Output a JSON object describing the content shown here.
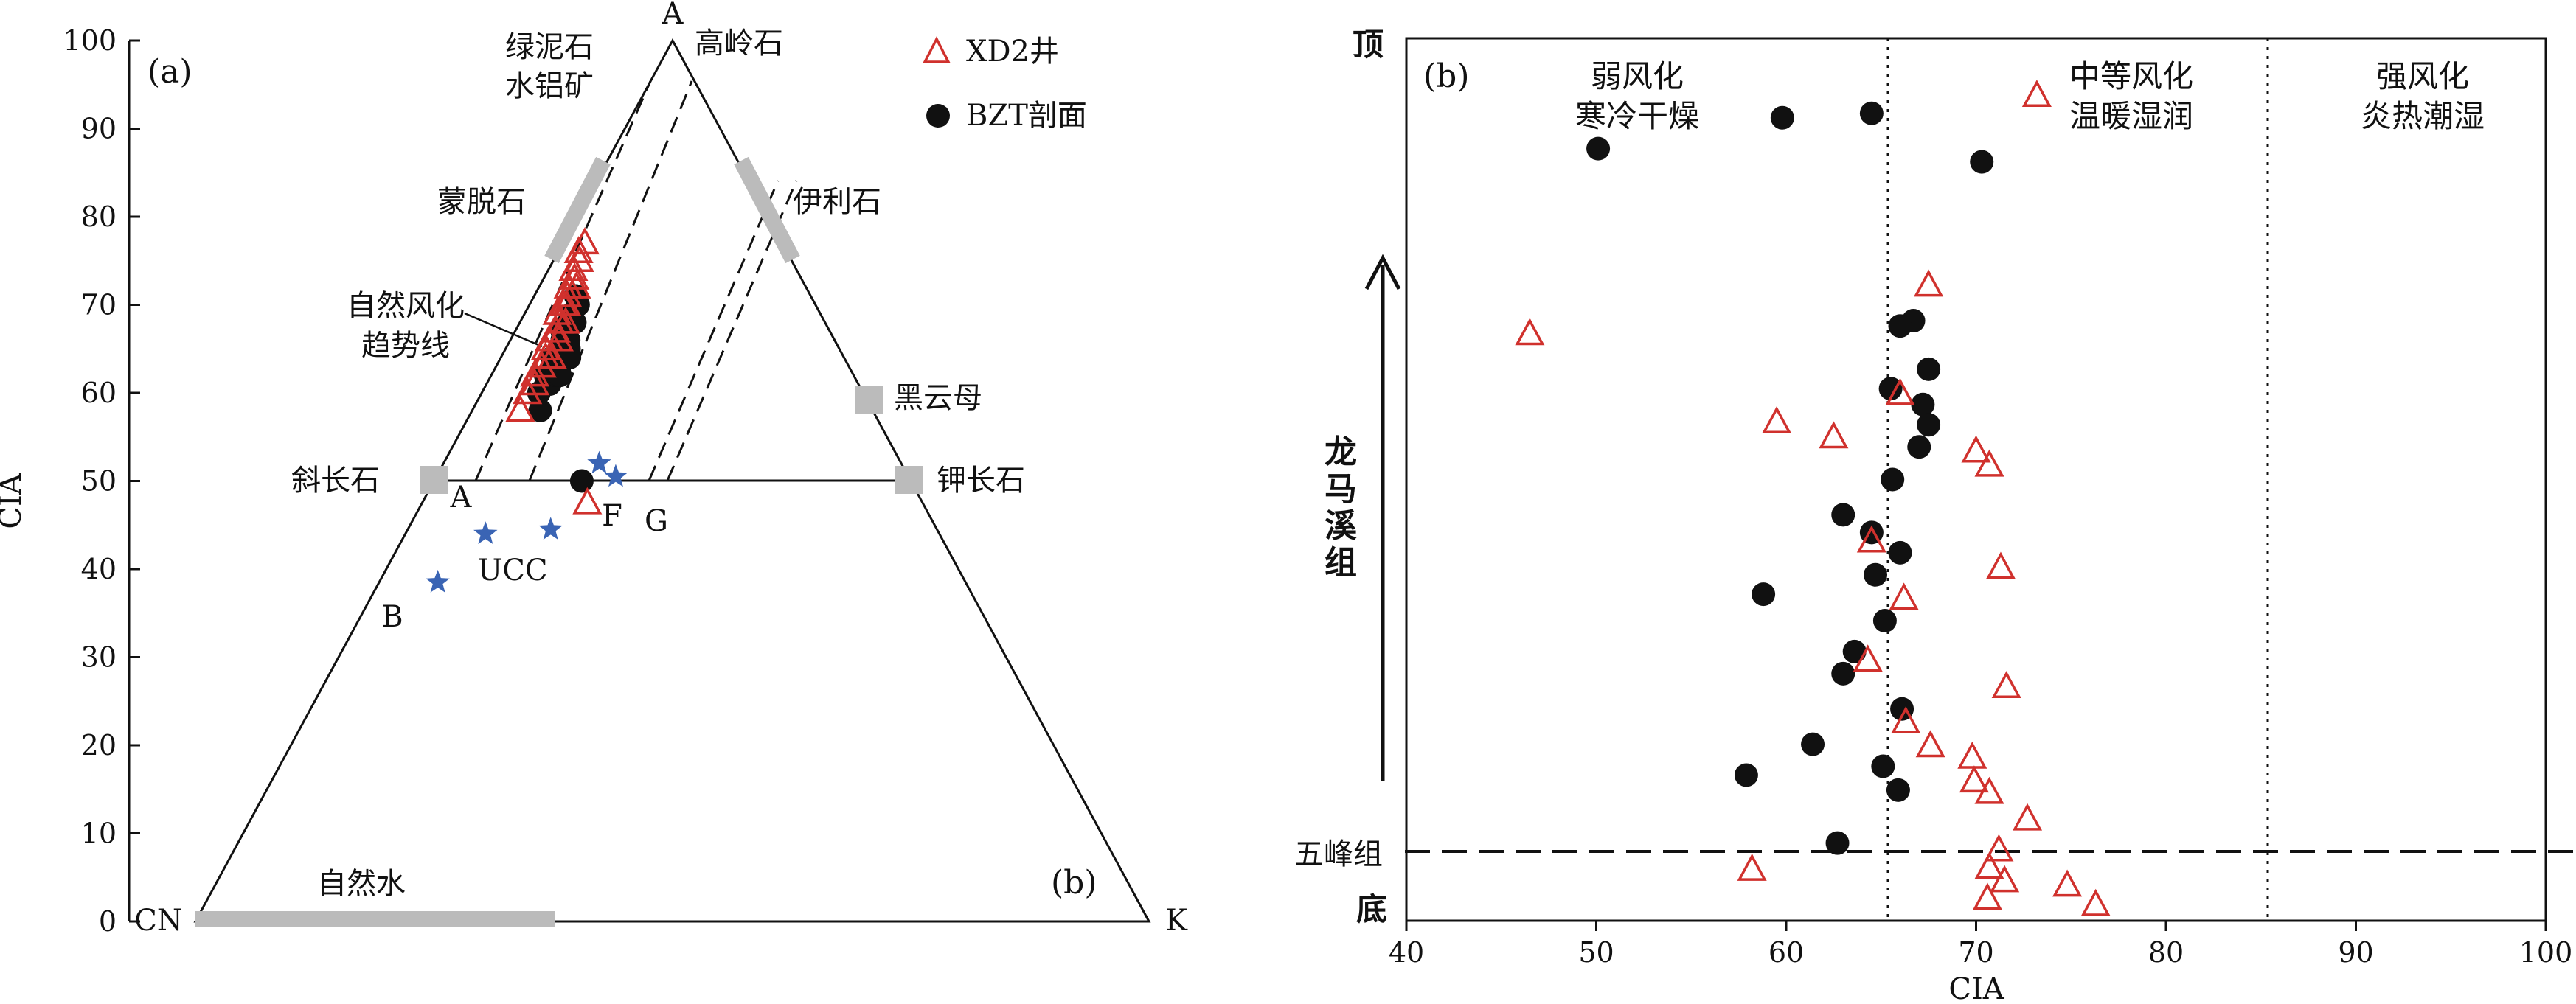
{
  "colors": {
    "xd2": "#d0312d",
    "bzt": "#111111",
    "ucc": "#3a64b4",
    "mineral": "#b9b9b9",
    "axis": "#111111"
  },
  "chart_data": [
    {
      "type": "scatter",
      "subtype": "ternary",
      "panel_label": "(a)",
      "ylabel": "CIA",
      "ylim": [
        0,
        100
      ],
      "yticks": [
        "0",
        "10",
        "20",
        "30",
        "40",
        "50",
        "60",
        "70",
        "80",
        "90",
        "100"
      ],
      "corners": {
        "top": "A",
        "left": "CN",
        "right": "K"
      },
      "corner_label_b": "(b)",
      "legend": [
        {
          "name": "XD2井",
          "marker": "triangle"
        },
        {
          "name": "BZT剖面",
          "marker": "circle"
        }
      ],
      "minerals": {
        "chlorite_gibbsite": [
          "绿泥石",
          "水铝矿"
        ],
        "kaolinite": "高岭石",
        "montmorillonite": "蒙脱石",
        "illite": "伊利石",
        "biotite": "黑云母",
        "plagioclase": "斜长石",
        "kfeldspar": "钾长石",
        "natural_water": "自然水"
      },
      "trend_label": [
        "自然风化",
        "趋势线"
      ],
      "ucc_label": "UCC",
      "point_labels": {
        "a": "A",
        "b": "B",
        "f": "F",
        "g": "G"
      },
      "ucc_points": [
        {
          "cia": 38.5,
          "k": 10
        },
        {
          "cia": 44,
          "k": 15
        },
        {
          "cia": 44.5,
          "k": 27
        },
        {
          "cia": 52,
          "k": 34
        },
        {
          "cia": 50.5,
          "k": 38
        }
      ],
      "point_f": {
        "cia": 47.5,
        "k": 33
      },
      "series": [
        {
          "name": "XD2井",
          "points": [
            {
              "cia": 58,
              "k": 12
            },
            {
              "cia": 60,
              "k": 12
            },
            {
              "cia": 61,
              "k": 13
            },
            {
              "cia": 62,
              "k": 12
            },
            {
              "cia": 63,
              "k": 13
            },
            {
              "cia": 64,
              "k": 13
            },
            {
              "cia": 65,
              "k": 12
            },
            {
              "cia": 66,
              "k": 12
            },
            {
              "cia": 67,
              "k": 13
            },
            {
              "cia": 68,
              "k": 13
            },
            {
              "cia": 69,
              "k": 11
            },
            {
              "cia": 70,
              "k": 12
            },
            {
              "cia": 71,
              "k": 12
            },
            {
              "cia": 72,
              "k": 11
            },
            {
              "cia": 73,
              "k": 12
            },
            {
              "cia": 74,
              "k": 10
            },
            {
              "cia": 75,
              "k": 11
            },
            {
              "cia": 76,
              "k": 9
            },
            {
              "cia": 77,
              "k": 10
            },
            {
              "cia": 66,
              "k": 15
            },
            {
              "cia": 64,
              "k": 15
            },
            {
              "cia": 68,
              "k": 15
            },
            {
              "cia": 70,
              "k": 13
            },
            {
              "cia": 72,
              "k": 14
            }
          ]
        },
        {
          "name": "BZT剖面",
          "points": [
            {
              "cia": 58,
              "k": 17
            },
            {
              "cia": 60,
              "k": 15
            },
            {
              "cia": 61,
              "k": 16
            },
            {
              "cia": 62,
              "k": 15
            },
            {
              "cia": 61,
              "k": 17
            },
            {
              "cia": 63,
              "k": 16
            },
            {
              "cia": 64,
              "k": 15
            },
            {
              "cia": 62,
              "k": 18
            },
            {
              "cia": 63,
              "k": 18
            },
            {
              "cia": 64,
              "k": 18
            },
            {
              "cia": 65,
              "k": 17
            },
            {
              "cia": 66,
              "k": 16
            },
            {
              "cia": 67,
              "k": 15
            },
            {
              "cia": 65,
              "k": 19
            },
            {
              "cia": 66,
              "k": 18
            },
            {
              "cia": 68,
              "k": 16
            },
            {
              "cia": 69,
              "k": 16
            },
            {
              "cia": 70,
              "k": 17
            },
            {
              "cia": 71,
              "k": 15
            },
            {
              "cia": 50,
              "k": 31
            },
            {
              "cia": 62,
              "k": 19
            },
            {
              "cia": 64,
              "k": 20
            },
            {
              "cia": 68,
              "k": 18
            }
          ]
        }
      ]
    },
    {
      "type": "scatter",
      "panel_label": "(b)",
      "xlabel": "CIA",
      "xlim": [
        40,
        100
      ],
      "xticks": [
        "40",
        "50",
        "60",
        "70",
        "80",
        "90",
        "100"
      ],
      "left_labels": {
        "top": "顶",
        "bottom": "底",
        "boundary": "五峰组",
        "formation": [
          "龙",
          "马",
          "溪",
          "组"
        ]
      },
      "dotted_lines_cia": [
        65,
        85
      ],
      "zones": [
        {
          "line1": "弱风化",
          "line2": "寒冷干燥"
        },
        {
          "line1": "中等风化",
          "line2": "温暖湿润"
        },
        {
          "line1": "强风化",
          "line2": "炎热潮湿"
        }
      ],
      "series": [
        {
          "name": "XD2井",
          "points": [
            {
              "cia": 67.5,
              "pos": 0.72
            },
            {
              "cia": 46.5,
              "pos": 0.665
            },
            {
              "cia": 66,
              "pos": 0.597
            },
            {
              "cia": 59.5,
              "pos": 0.565
            },
            {
              "cia": 62.5,
              "pos": 0.548
            },
            {
              "cia": 70,
              "pos": 0.532
            },
            {
              "cia": 70.7,
              "pos": 0.516
            },
            {
              "cia": 64.5,
              "pos": 0.43
            },
            {
              "cia": 71.3,
              "pos": 0.4
            },
            {
              "cia": 66.2,
              "pos": 0.365
            },
            {
              "cia": 64.3,
              "pos": 0.295
            },
            {
              "cia": 71.6,
              "pos": 0.265
            },
            {
              "cia": 66.3,
              "pos": 0.225
            },
            {
              "cia": 67.6,
              "pos": 0.198
            },
            {
              "cia": 69.8,
              "pos": 0.185
            },
            {
              "cia": 69.9,
              "pos": 0.158
            },
            {
              "cia": 70.7,
              "pos": 0.145
            },
            {
              "cia": 72.7,
              "pos": 0.115
            },
            {
              "cia": 71.2,
              "pos": 0.08
            },
            {
              "cia": 58.2,
              "pos": 0.058
            },
            {
              "cia": 70.7,
              "pos": 0.06
            },
            {
              "cia": 71.5,
              "pos": 0.045
            },
            {
              "cia": 74.8,
              "pos": 0.04
            },
            {
              "cia": 70.6,
              "pos": 0.025
            },
            {
              "cia": 76.3,
              "pos": 0.018
            },
            {
              "cia": 73.2,
              "pos": 0.935
            }
          ]
        },
        {
          "name": "BZT剖面",
          "points": [
            {
              "cia": 64.5,
              "pos": 0.915
            },
            {
              "cia": 59.8,
              "pos": 0.91
            },
            {
              "cia": 50.1,
              "pos": 0.875
            },
            {
              "cia": 70.3,
              "pos": 0.86
            },
            {
              "cia": 66.7,
              "pos": 0.68
            },
            {
              "cia": 66,
              "pos": 0.674
            },
            {
              "cia": 67.5,
              "pos": 0.625
            },
            {
              "cia": 65.5,
              "pos": 0.603
            },
            {
              "cia": 67.2,
              "pos": 0.585
            },
            {
              "cia": 67.5,
              "pos": 0.562
            },
            {
              "cia": 67,
              "pos": 0.537
            },
            {
              "cia": 65.6,
              "pos": 0.5
            },
            {
              "cia": 63,
              "pos": 0.46
            },
            {
              "cia": 64.5,
              "pos": 0.44
            },
            {
              "cia": 66,
              "pos": 0.417
            },
            {
              "cia": 64.7,
              "pos": 0.392
            },
            {
              "cia": 58.8,
              "pos": 0.37
            },
            {
              "cia": 65.2,
              "pos": 0.34
            },
            {
              "cia": 63.6,
              "pos": 0.305
            },
            {
              "cia": 63,
              "pos": 0.28
            },
            {
              "cia": 66.1,
              "pos": 0.24
            },
            {
              "cia": 61.4,
              "pos": 0.2
            },
            {
              "cia": 65.1,
              "pos": 0.175
            },
            {
              "cia": 57.9,
              "pos": 0.165
            },
            {
              "cia": 65.9,
              "pos": 0.148
            },
            {
              "cia": 62.7,
              "pos": 0.088
            }
          ]
        }
      ]
    }
  ]
}
